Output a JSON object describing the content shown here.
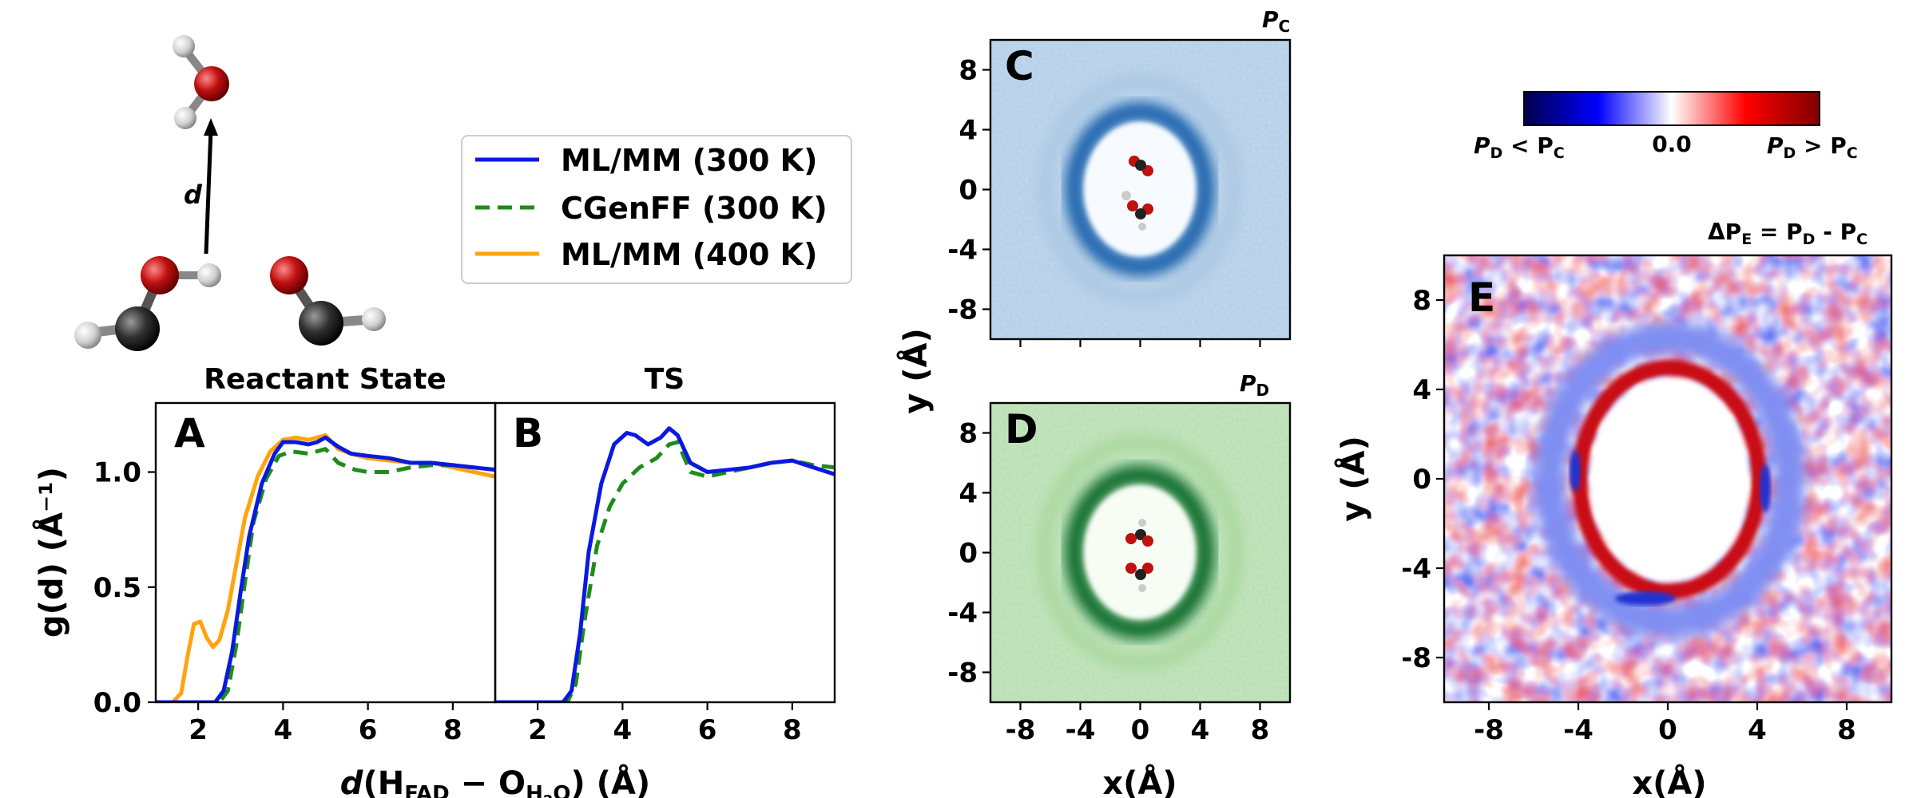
{
  "colors": {
    "mlmm300": "#0b19e0",
    "cgenff300": "#1f8c1a",
    "mlmm400": "#ffa40c",
    "pos": "#d01018",
    "neg": "#1028d8"
  },
  "molecule": {
    "distance_label": "d",
    "icons": [
      "water-molecule-icon",
      "formic-acid-icon"
    ]
  },
  "legend": {
    "items": [
      {
        "label": "ML/MM (300 K)",
        "color": "#0b19e0",
        "style": "solid"
      },
      {
        "label": "CGenFF (300 K)",
        "color": "#1f8c1a",
        "style": "dashed"
      },
      {
        "label": "ML/MM (400 K)",
        "color": "#ffa40c",
        "style": "solid"
      }
    ]
  },
  "panels": {
    "A": {
      "label": "A",
      "title": "Reactant State"
    },
    "B": {
      "label": "B",
      "title": "TS"
    },
    "C": {
      "label": "C",
      "title_main": "P",
      "title_sub": "C"
    },
    "D": {
      "label": "D",
      "title_main": "P",
      "title_sub": "D"
    },
    "E": {
      "label": "E",
      "title": "ΔP_E = P_D - P_C",
      "title_parts": [
        "ΔP",
        "E",
        " = P",
        "D",
        " - P",
        "C"
      ]
    }
  },
  "axes": {
    "gd_ylabel": "g(d) (Å⁻¹)",
    "gd_xlabel": "d(H_FAD − O_H2O) (Å)",
    "gd_xlabel_parts": [
      "d",
      "(H",
      "FAD",
      " − O",
      "H",
      "2",
      "O",
      ") (Å)"
    ],
    "map_ylabel": "y (Å)",
    "map_xlabel": "x(Å)"
  },
  "colorbar": {
    "left_label": "P_D < P_C",
    "center_label": "0.0",
    "right_label": "P_D > P_C",
    "left_parts": [
      "P",
      "D",
      " < P",
      "C"
    ],
    "right_parts": [
      "P",
      "D",
      " > P",
      "C"
    ]
  },
  "chart_data": [
    {
      "type": "line",
      "id": "A",
      "title": "Reactant State",
      "xlim": [
        1,
        9
      ],
      "ylim": [
        0,
        1.3
      ],
      "xticks": [
        2,
        4,
        6,
        8
      ],
      "yticks": [
        0.0,
        0.5,
        1.0
      ],
      "ytick_labels": [
        "0.0",
        "0.5",
        "1.0"
      ],
      "series": [
        {
          "name": "ML/MM (300 K)",
          "x": [
            1.0,
            2.0,
            2.4,
            2.6,
            2.8,
            3.0,
            3.2,
            3.5,
            3.8,
            4.0,
            4.3,
            4.6,
            4.8,
            5.0,
            5.3,
            5.6,
            6.0,
            6.5,
            7.0,
            7.5,
            8.0,
            8.5,
            9.0
          ],
          "y": [
            0,
            0,
            0,
            0.05,
            0.22,
            0.48,
            0.72,
            0.95,
            1.08,
            1.13,
            1.13,
            1.12,
            1.13,
            1.15,
            1.11,
            1.08,
            1.07,
            1.06,
            1.04,
            1.04,
            1.03,
            1.02,
            1.01
          ]
        },
        {
          "name": "CGenFF (300 K)",
          "x": [
            1.0,
            2.0,
            2.5,
            2.7,
            2.9,
            3.1,
            3.3,
            3.6,
            3.9,
            4.2,
            4.6,
            5.0,
            5.3,
            5.7,
            6.0,
            6.5,
            7.0,
            7.5,
            8.0,
            8.5,
            9.0
          ],
          "y": [
            0,
            0,
            0,
            0.05,
            0.25,
            0.52,
            0.78,
            0.97,
            1.07,
            1.09,
            1.08,
            1.1,
            1.04,
            1.01,
            1.0,
            1.0,
            1.02,
            1.03,
            1.03,
            1.02,
            1.01
          ]
        },
        {
          "name": "ML/MM (400 K)",
          "x": [
            1.0,
            1.4,
            1.6,
            1.75,
            1.9,
            2.05,
            2.2,
            2.35,
            2.5,
            2.7,
            2.9,
            3.1,
            3.4,
            3.7,
            4.0,
            4.3,
            4.6,
            5.0,
            5.3,
            5.6,
            6.0,
            6.5,
            7.0,
            7.5,
            8.0,
            8.5,
            9.0
          ],
          "y": [
            0,
            0,
            0.04,
            0.2,
            0.34,
            0.35,
            0.28,
            0.24,
            0.27,
            0.4,
            0.6,
            0.8,
            0.98,
            1.09,
            1.14,
            1.15,
            1.14,
            1.16,
            1.1,
            1.08,
            1.06,
            1.05,
            1.04,
            1.04,
            1.02,
            1.0,
            0.98
          ]
        }
      ]
    },
    {
      "type": "line",
      "id": "B",
      "title": "TS",
      "xlim": [
        1,
        9
      ],
      "ylim": [
        0,
        1.3
      ],
      "xticks": [
        2,
        4,
        6,
        8
      ],
      "series": [
        {
          "name": "ML/MM (300 K)",
          "x": [
            1.0,
            2.0,
            2.6,
            2.8,
            3.0,
            3.2,
            3.5,
            3.8,
            4.1,
            4.3,
            4.6,
            4.9,
            5.1,
            5.3,
            5.6,
            6.0,
            6.5,
            7.0,
            7.5,
            8.0,
            8.5,
            9.0
          ],
          "y": [
            0,
            0,
            0,
            0.05,
            0.3,
            0.65,
            0.95,
            1.12,
            1.17,
            1.16,
            1.12,
            1.15,
            1.19,
            1.16,
            1.04,
            1.0,
            1.01,
            1.02,
            1.04,
            1.05,
            1.02,
            0.99
          ]
        },
        {
          "name": "CGenFF (300 K)",
          "x": [
            1.0,
            2.0,
            2.7,
            2.9,
            3.1,
            3.4,
            3.7,
            4.0,
            4.4,
            4.8,
            5.1,
            5.3,
            5.6,
            6.0,
            6.5,
            7.0,
            7.5,
            8.0,
            8.5,
            9.0
          ],
          "y": [
            0,
            0,
            0,
            0.08,
            0.35,
            0.68,
            0.85,
            0.95,
            1.02,
            1.06,
            1.12,
            1.13,
            1.0,
            0.98,
            1.0,
            1.02,
            1.04,
            1.05,
            1.03,
            1.02
          ]
        }
      ]
    },
    {
      "type": "heatmap",
      "id": "C",
      "title": "P_C",
      "colormap": "Blues",
      "xlim": [
        -10,
        10
      ],
      "ylim": [
        -10,
        10
      ],
      "yticks": [
        8,
        4,
        0,
        -4,
        -8
      ],
      "ytick_labels": [
        "8",
        "4",
        "0",
        "-4",
        "-8"
      ],
      "ring_radius_x": 4,
      "ring_radius_y": 5
    },
    {
      "type": "heatmap",
      "id": "D",
      "title": "P_D",
      "colormap": "Greens",
      "xlim": [
        -10,
        10
      ],
      "ylim": [
        -10,
        10
      ],
      "xticks": [
        -8,
        -4,
        0,
        4,
        8
      ],
      "xtick_labels": [
        "-8",
        "-4",
        "0",
        "4",
        "8"
      ],
      "yticks": [
        8,
        4,
        0,
        -4,
        -8
      ],
      "ytick_labels": [
        "8",
        "4",
        "0",
        "-4",
        "-8"
      ]
    },
    {
      "type": "heatmap",
      "id": "E",
      "title": "ΔP_E = P_D - P_C",
      "colormap": "seismic",
      "xlim": [
        -10,
        10
      ],
      "ylim": [
        -10,
        10
      ],
      "xticks": [
        -8,
        -4,
        0,
        4,
        8
      ],
      "xtick_labels": [
        "-8",
        "-4",
        "0",
        "4",
        "8"
      ],
      "yticks": [
        8,
        4,
        0,
        -4,
        -8
      ],
      "ytick_labels": [
        "8",
        "4",
        "0",
        "-4",
        "-8"
      ],
      "colorbar_center": 0.0
    }
  ]
}
